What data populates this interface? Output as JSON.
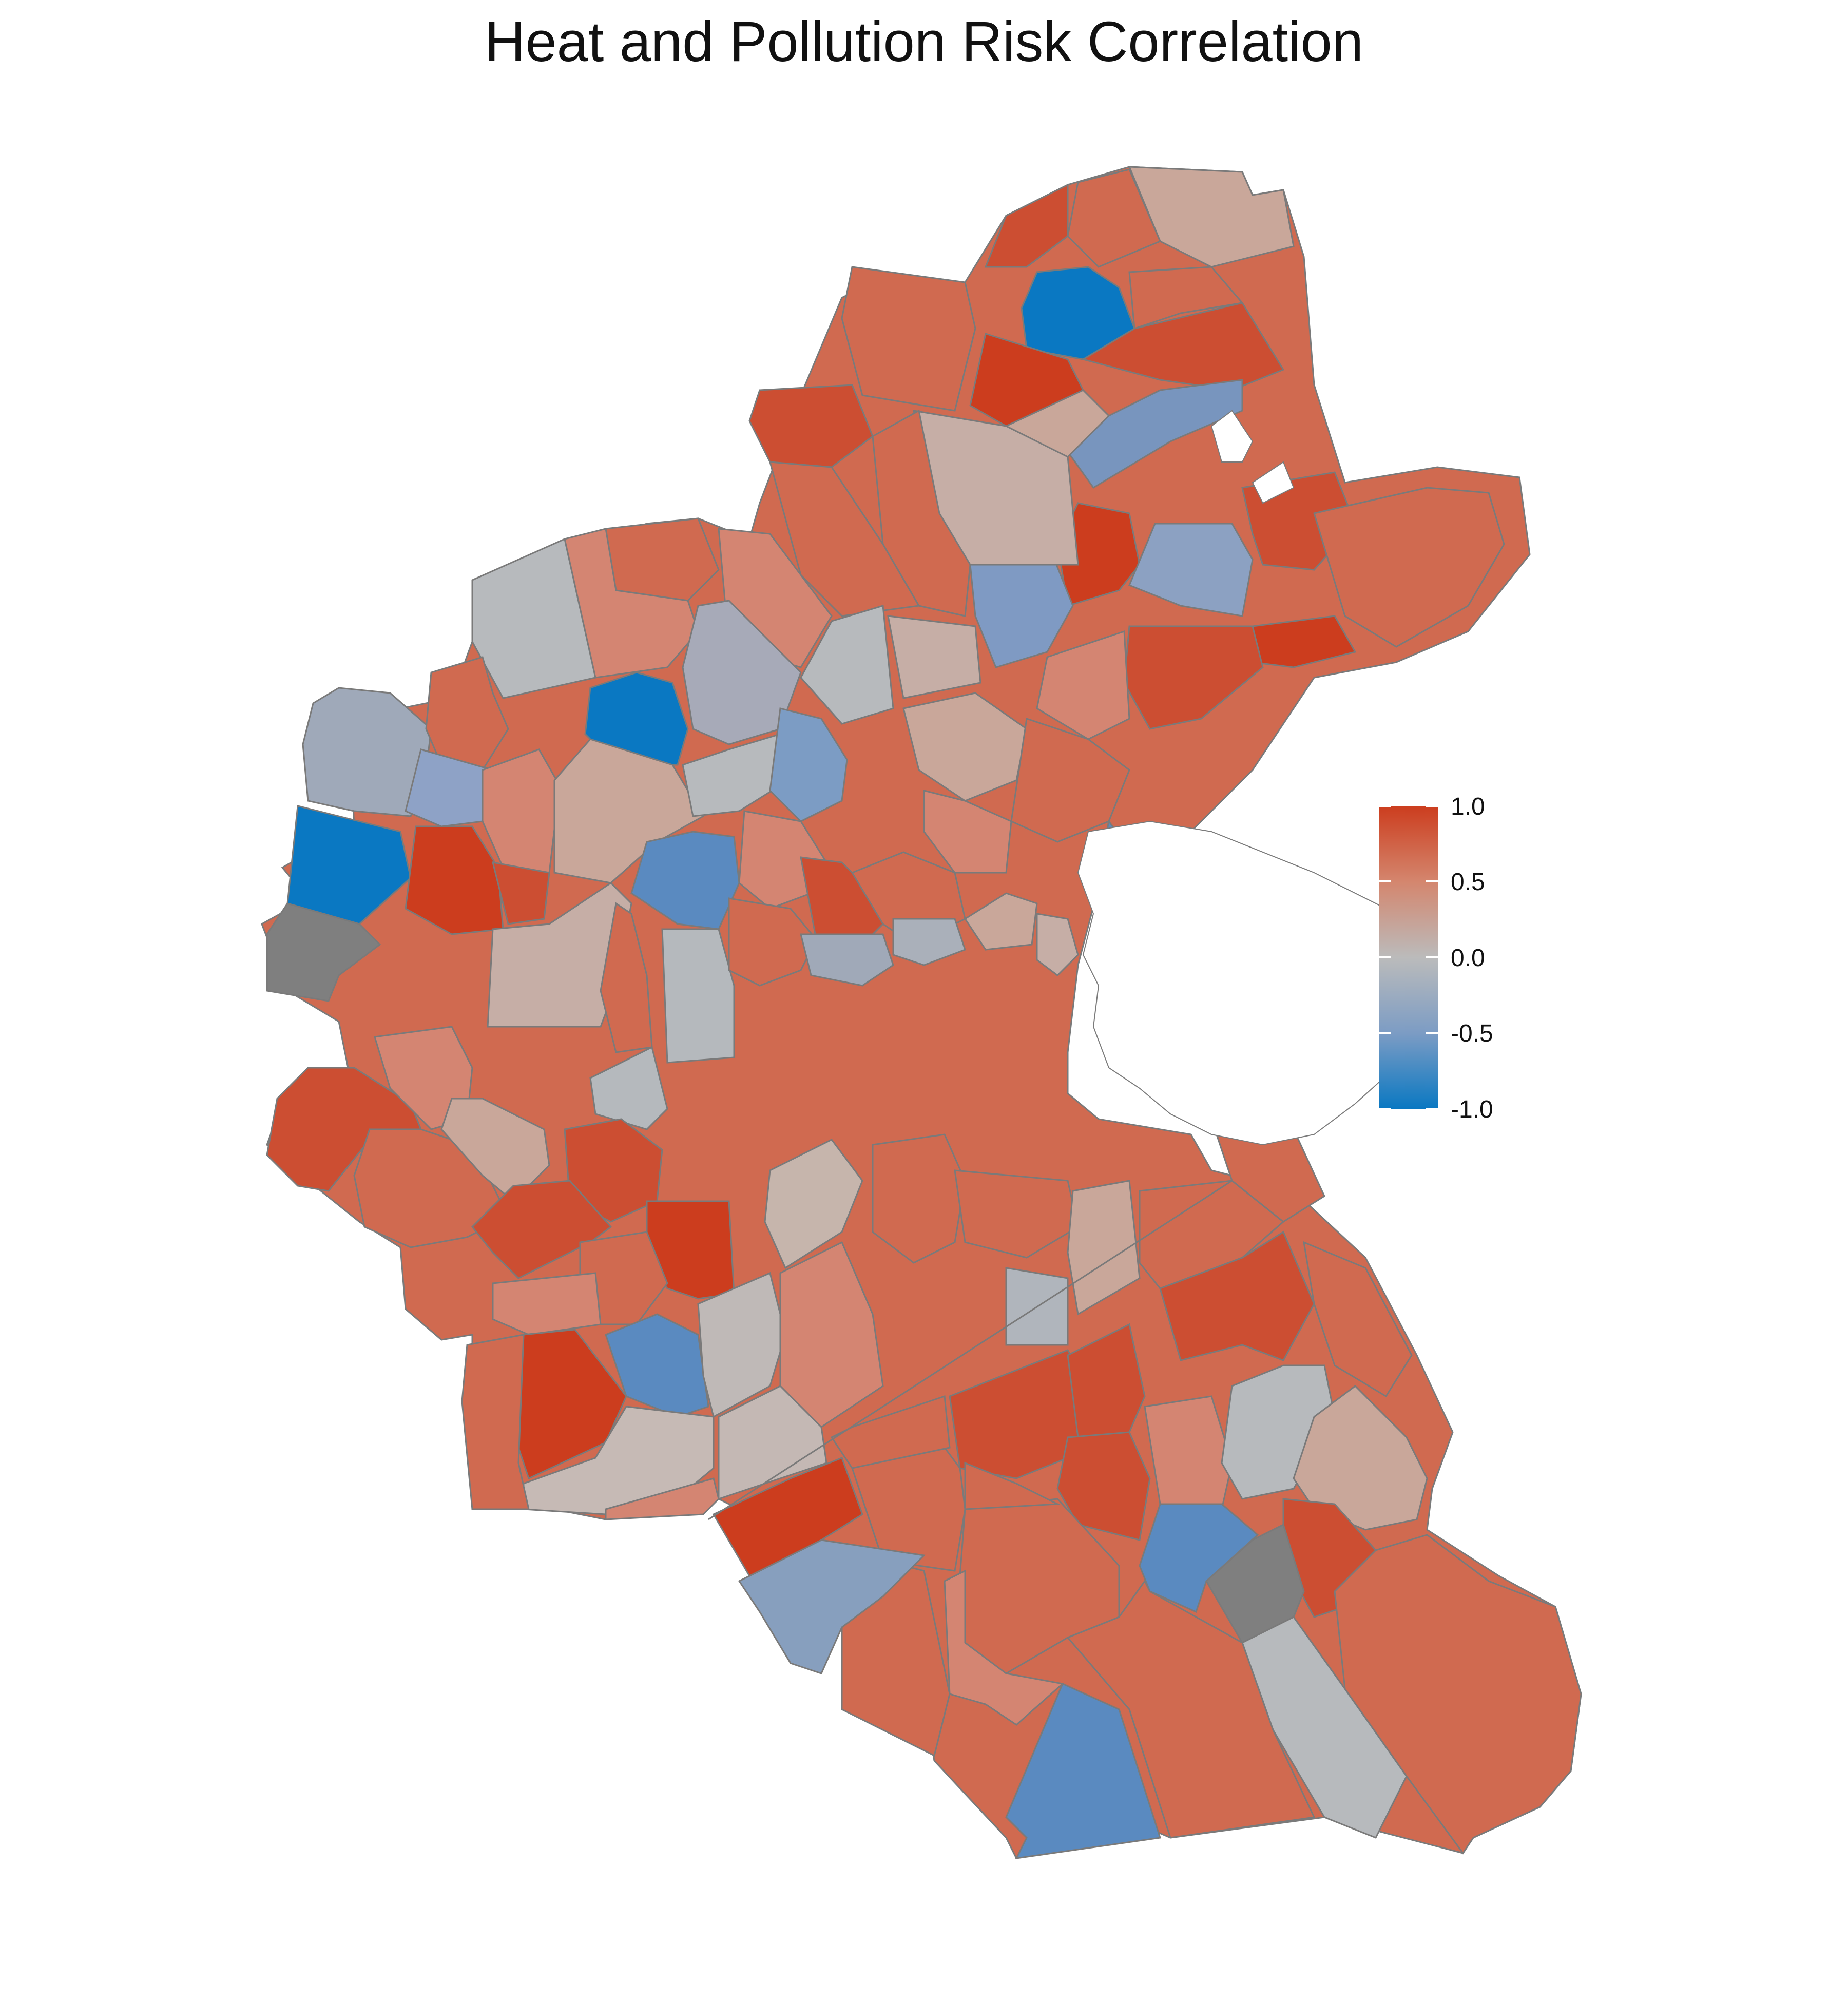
{
  "title": "Heat and Pollution Risk Correlation",
  "legend": {
    "ticks": [
      "1.0",
      "0.5",
      "0.0",
      "-0.5",
      "-1.0"
    ],
    "tick_values": [
      1.0,
      0.5,
      0.0,
      -0.5,
      -1.0
    ],
    "colors": {
      "high": "#CC3D1E",
      "mid": "#BBBBBB",
      "low": "#0A78C2",
      "na": "#7F7F7F"
    }
  }
}
